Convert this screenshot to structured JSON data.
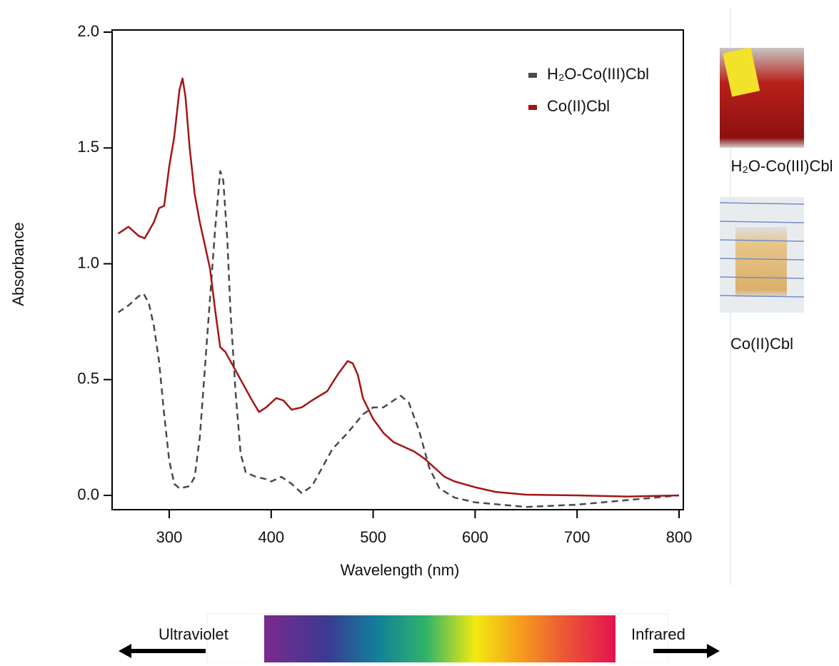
{
  "chart_data": {
    "type": "line",
    "x_label": "Wavelength (nm)",
    "y_label": "Absorbance",
    "xlim": [
      250,
      800
    ],
    "xticks": [
      300,
      400,
      500,
      600,
      700,
      800
    ],
    "ylim": [
      0,
      2
    ],
    "yticks": [
      {
        "value": 0,
        "label": "0.0"
      },
      0.5,
      {
        "value": 1,
        "label": "1.0"
      },
      1.5,
      {
        "value": 2,
        "label": "2.0"
      }
    ],
    "legend": "upper right",
    "series": [
      {
        "name": "H₂O-Co(III)Cbl",
        "color": "#4a4a4a",
        "dash": true,
        "x": [
          250,
          260,
          270,
          275,
          280,
          285,
          290,
          295,
          300,
          305,
          310,
          320,
          325,
          330,
          335,
          340,
          345,
          350,
          353,
          357,
          360,
          365,
          370,
          375,
          385,
          395,
          400,
          410,
          420,
          430,
          440,
          450,
          460,
          475,
          490,
          500,
          510,
          520,
          527,
          535,
          545,
          555,
          565,
          580,
          600,
          650,
          700,
          750,
          800
        ],
        "values": [
          0.79,
          0.82,
          0.86,
          0.87,
          0.83,
          0.73,
          0.58,
          0.35,
          0.15,
          0.05,
          0.03,
          0.04,
          0.08,
          0.25,
          0.55,
          0.85,
          1.15,
          1.4,
          1.36,
          1.1,
          0.8,
          0.45,
          0.18,
          0.1,
          0.08,
          0.07,
          0.06,
          0.08,
          0.05,
          0.01,
          0.04,
          0.12,
          0.2,
          0.27,
          0.35,
          0.38,
          0.38,
          0.41,
          0.43,
          0.4,
          0.28,
          0.12,
          0.03,
          -0.01,
          -0.03,
          -0.05,
          -0.04,
          -0.02,
          0
        ]
      },
      {
        "name": "Co(II)Cbl",
        "color": "#a31515",
        "dash": false,
        "x": [
          250,
          260,
          270,
          276,
          285,
          290,
          295,
          300,
          305,
          310,
          313,
          316,
          320,
          325,
          330,
          340,
          345,
          350,
          355,
          360,
          370,
          380,
          388,
          395,
          405,
          412,
          420,
          430,
          440,
          455,
          465,
          475,
          480,
          485,
          490,
          500,
          510,
          520,
          530,
          540,
          550,
          560,
          570,
          580,
          600,
          620,
          650,
          700,
          750,
          800
        ],
        "values": [
          1.13,
          1.16,
          1.12,
          1.11,
          1.18,
          1.24,
          1.25,
          1.42,
          1.55,
          1.75,
          1.8,
          1.72,
          1.5,
          1.3,
          1.18,
          0.98,
          0.8,
          0.64,
          0.62,
          0.58,
          0.5,
          0.42,
          0.36,
          0.38,
          0.42,
          0.41,
          0.37,
          0.38,
          0.41,
          0.45,
          0.52,
          0.58,
          0.57,
          0.52,
          0.42,
          0.33,
          0.27,
          0.23,
          0.21,
          0.19,
          0.16,
          0.12,
          0.08,
          0.06,
          0.035,
          0.015,
          0.003,
          0,
          -0.005,
          0
        ]
      }
    ]
  },
  "photos": [
    {
      "caption": "H₂O-Co(III)Cbl"
    },
    {
      "caption": "Co(II)Cbl"
    }
  ],
  "spectrum": {
    "left_label": "Ultraviolet",
    "right_label": "Infrared"
  }
}
